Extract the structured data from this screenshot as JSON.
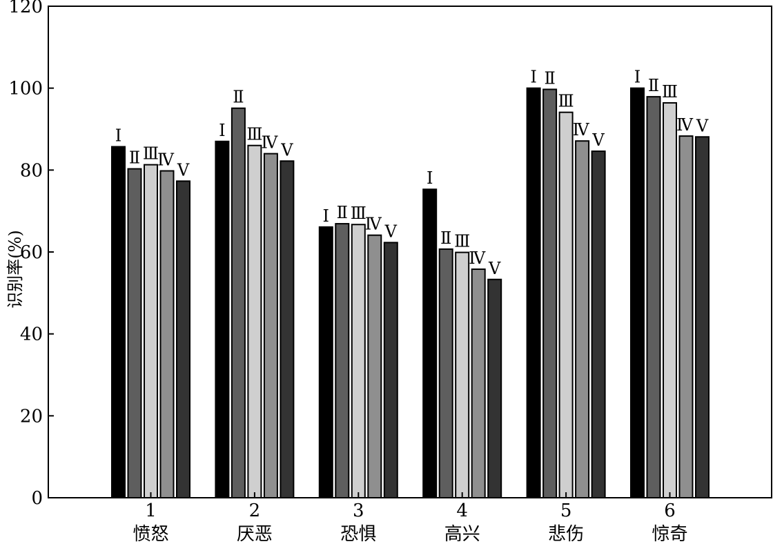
{
  "chart_data": {
    "type": "bar",
    "title": "",
    "xlabel": "",
    "ylabel": "识别率(%)",
    "ylim": [
      0,
      120
    ],
    "yticks": [
      0,
      20,
      40,
      60,
      80,
      100,
      120
    ],
    "grid": false,
    "categories": [
      {
        "number": "1",
        "name": "愤怒"
      },
      {
        "number": "2",
        "name": "厌恶"
      },
      {
        "number": "3",
        "name": "恐惧"
      },
      {
        "number": "4",
        "name": "高兴"
      },
      {
        "number": "5",
        "name": "悲伤"
      },
      {
        "number": "6",
        "name": "惊奇"
      }
    ],
    "series": [
      {
        "label": "Ⅰ",
        "color": "#000000",
        "values": [
          85.7,
          87.0,
          66.1,
          75.3,
          100.0,
          100.0
        ]
      },
      {
        "label": "Ⅱ",
        "color": "#5e5e5e",
        "values": [
          80.3,
          95.1,
          66.9,
          60.7,
          99.7,
          97.9
        ]
      },
      {
        "label": "Ⅲ",
        "color": "#cfcfcf",
        "values": [
          81.3,
          86.0,
          66.7,
          59.9,
          94.1,
          96.4
        ]
      },
      {
        "label": "Ⅳ",
        "color": "#8f8f8f",
        "values": [
          79.8,
          84.0,
          64.1,
          55.8,
          87.1,
          88.3
        ]
      },
      {
        "label": "Ⅴ",
        "color": "#333333",
        "values": [
          77.3,
          82.2,
          62.3,
          53.3,
          84.6,
          88.1
        ]
      }
    ]
  }
}
